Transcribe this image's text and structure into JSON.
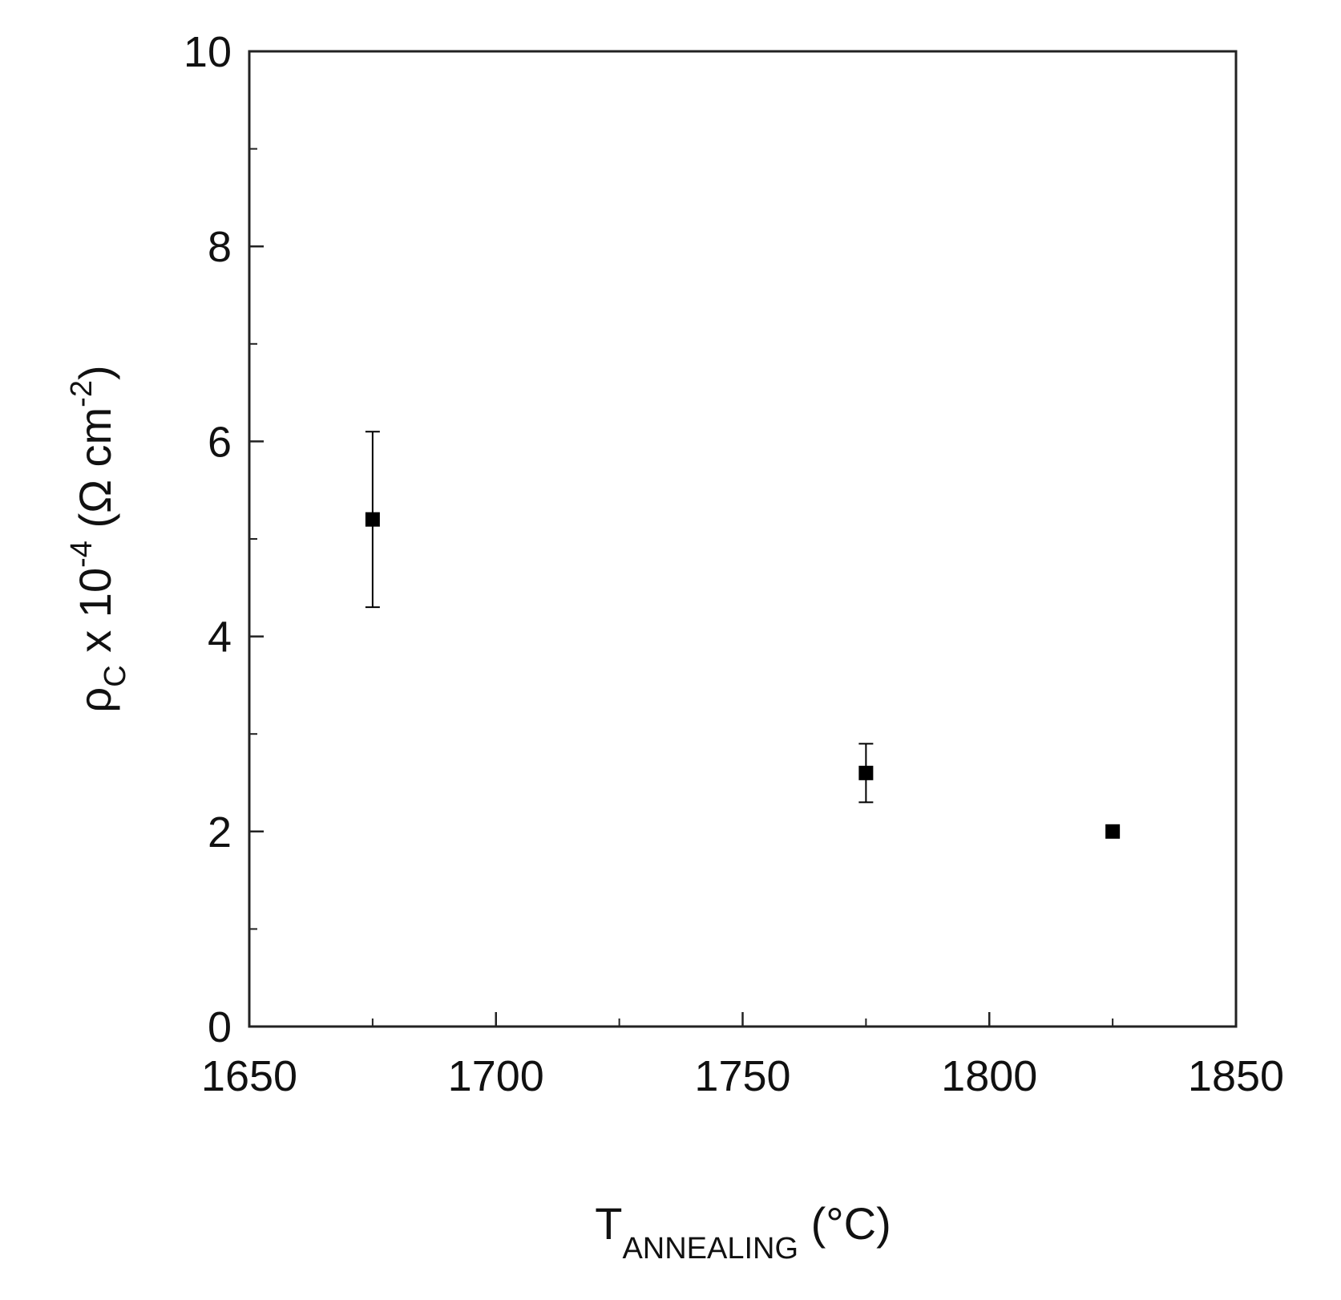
{
  "chart_data": {
    "type": "scatter",
    "x_label": [
      "T",
      "ANNEALING",
      " (°C)"
    ],
    "y_label": [
      "ρ",
      "C",
      " x 10",
      "-4",
      " (Ω cm",
      "-2",
      ")"
    ],
    "series": [
      {
        "color": "#000000",
        "x": [
          1675,
          1775,
          1825
        ],
        "values": [
          5.2,
          2.6,
          2.0
        ],
        "errors": [
          0.9,
          0.3,
          null
        ]
      }
    ],
    "xlim": [
      1650,
      1850
    ],
    "xticks": [
      1650,
      1700,
      1750,
      1800,
      1850
    ],
    "xminorticks": [
      1675,
      1725,
      1775,
      1825
    ],
    "ylim": [
      0,
      10
    ],
    "yticks": [
      0,
      2,
      4,
      6,
      8,
      10
    ],
    "yminorticks": [
      1,
      3,
      5,
      7,
      9
    ],
    "grid": false
  }
}
